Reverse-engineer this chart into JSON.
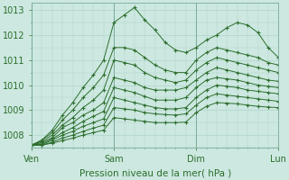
{
  "title": "",
  "xlabel": "Pression niveau de la mer( hPa )",
  "background_color": "#cce8e0",
  "grid_color": "#b0d4cc",
  "line_color": "#2d6e2d",
  "marker": "+",
  "xlim": [
    0,
    72
  ],
  "ylim": [
    1007.5,
    1013.3
  ],
  "xticks": [
    0,
    24,
    48,
    72
  ],
  "xtick_labels": [
    "Ven",
    "Sam",
    "Dim",
    "Lun"
  ],
  "yticks": [
    1008,
    1009,
    1010,
    1011,
    1012,
    1013
  ],
  "series_x": [
    0,
    3,
    6,
    9,
    12,
    15,
    18,
    21,
    24,
    27,
    30,
    33,
    36,
    39,
    42,
    45,
    48,
    51,
    54,
    57,
    60,
    63,
    66,
    69,
    72
  ],
  "series": [
    [
      1007.6,
      1007.8,
      1008.2,
      1008.8,
      1009.3,
      1009.9,
      1010.4,
      1011.0,
      1012.5,
      1012.8,
      1013.1,
      1012.6,
      1012.2,
      1011.7,
      1011.4,
      1011.3,
      1011.5,
      1011.8,
      1012.0,
      1012.3,
      1012.5,
      1012.4,
      1012.1,
      1011.5,
      1011.1
    ],
    [
      1007.6,
      1007.8,
      1008.1,
      1008.6,
      1009.0,
      1009.5,
      1009.9,
      1010.4,
      1011.5,
      1011.5,
      1011.4,
      1011.1,
      1010.8,
      1010.6,
      1010.5,
      1010.5,
      1011.0,
      1011.3,
      1011.5,
      1011.4,
      1011.3,
      1011.2,
      1011.1,
      1010.9,
      1010.8
    ],
    [
      1007.6,
      1007.75,
      1008.0,
      1008.4,
      1008.7,
      1009.1,
      1009.4,
      1009.8,
      1011.0,
      1010.9,
      1010.8,
      1010.5,
      1010.3,
      1010.2,
      1010.1,
      1010.2,
      1010.6,
      1010.9,
      1011.1,
      1011.0,
      1010.9,
      1010.8,
      1010.7,
      1010.6,
      1010.5
    ],
    [
      1007.6,
      1007.7,
      1007.9,
      1008.3,
      1008.5,
      1008.8,
      1009.0,
      1009.3,
      1010.3,
      1010.2,
      1010.1,
      1009.9,
      1009.8,
      1009.8,
      1009.8,
      1009.9,
      1010.2,
      1010.5,
      1010.7,
      1010.6,
      1010.5,
      1010.4,
      1010.3,
      1010.2,
      1010.15
    ],
    [
      1007.6,
      1007.65,
      1007.85,
      1008.1,
      1008.3,
      1008.55,
      1008.75,
      1008.95,
      1009.9,
      1009.8,
      1009.7,
      1009.55,
      1009.4,
      1009.4,
      1009.4,
      1009.5,
      1009.9,
      1010.2,
      1010.3,
      1010.25,
      1010.2,
      1010.1,
      1010.0,
      1009.95,
      1009.9
    ],
    [
      1007.6,
      1007.62,
      1007.8,
      1008.0,
      1008.15,
      1008.35,
      1008.5,
      1008.65,
      1009.5,
      1009.4,
      1009.3,
      1009.2,
      1009.1,
      1009.05,
      1009.05,
      1009.1,
      1009.5,
      1009.8,
      1010.0,
      1009.95,
      1009.9,
      1009.8,
      1009.75,
      1009.7,
      1009.65
    ],
    [
      1007.6,
      1007.6,
      1007.72,
      1007.88,
      1008.0,
      1008.15,
      1008.28,
      1008.4,
      1009.1,
      1009.05,
      1009.0,
      1008.9,
      1008.85,
      1008.82,
      1008.8,
      1008.85,
      1009.2,
      1009.5,
      1009.65,
      1009.6,
      1009.55,
      1009.5,
      1009.45,
      1009.4,
      1009.35
    ],
    [
      1007.6,
      1007.6,
      1007.68,
      1007.78,
      1007.88,
      1008.0,
      1008.1,
      1008.2,
      1008.7,
      1008.65,
      1008.6,
      1008.55,
      1008.5,
      1008.5,
      1008.5,
      1008.52,
      1008.9,
      1009.15,
      1009.3,
      1009.28,
      1009.25,
      1009.2,
      1009.15,
      1009.12,
      1009.1
    ]
  ]
}
